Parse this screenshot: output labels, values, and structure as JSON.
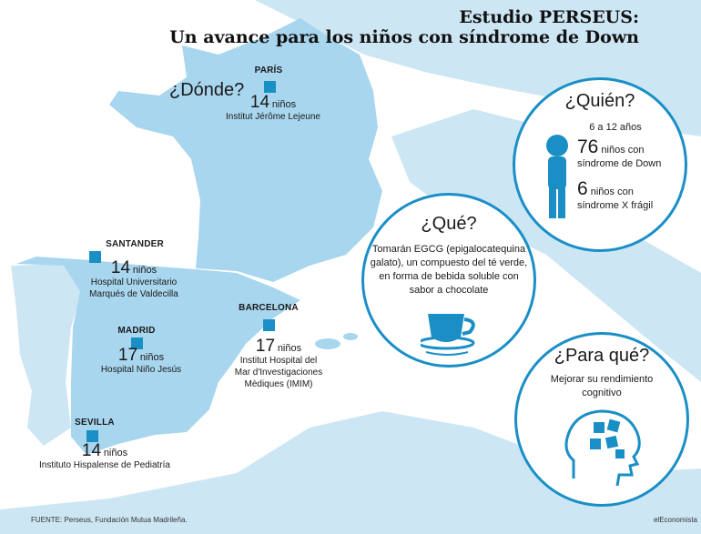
{
  "title": {
    "line1": "Estudio PERSEUS:",
    "line2": "Un avance para los niños con síndrome de Down"
  },
  "colors": {
    "land": "#a8d6ee",
    "land_light": "#cde6f4",
    "sea": "#ffffff",
    "accent": "#1a8fc6"
  },
  "donde": "¿Dónde?",
  "unit": "niños",
  "cities": [
    {
      "name": "PARÍS",
      "count": "14",
      "institution": "Institut Jérôme Lejeune"
    },
    {
      "name": "SANTANDER",
      "count": "14",
      "institution_l1": "Hospital Universitario",
      "institution_l2": "Marqués de Valdecilla"
    },
    {
      "name": "MADRID",
      "count": "17",
      "institution": "Hospital Niño Jesús"
    },
    {
      "name": "BARCELONA",
      "count": "17",
      "institution_l1": "Institut  Hospital del",
      "institution_l2": "Mar d'Investigaciones",
      "institution_l3": "Mèdiques (IMIM)"
    },
    {
      "name": "SEVILLA",
      "count": "14",
      "institution": "Instituto Hispalense de Pediatría"
    }
  ],
  "quien": {
    "title": "¿Quién?",
    "age": "6 a 12 años",
    "count1": "76",
    "label1_l1": "niños con",
    "label1_l2": "síndrome de Down",
    "count2": "6",
    "label2_l1": "niños con",
    "label2_l2": "síndrome X frágil",
    "icon": "child-icon"
  },
  "que": {
    "title": "¿Qué?",
    "l1": "Tomarán EGCG (epigalocatequina",
    "l2": "galato), un compuesto del té verde,",
    "l3": "en forma de bebida soluble con",
    "l4": "sabor a chocolate",
    "icon": "teacup-icon"
  },
  "paraque": {
    "title": "¿Para qué?",
    "l1": "Mejorar su rendimiento",
    "l2": "cognitivo",
    "icon": "head-puzzle-icon"
  },
  "footer": "FUENTE: Perseus, Fundación Mutua Madrileña.",
  "brand": "elEconomista"
}
